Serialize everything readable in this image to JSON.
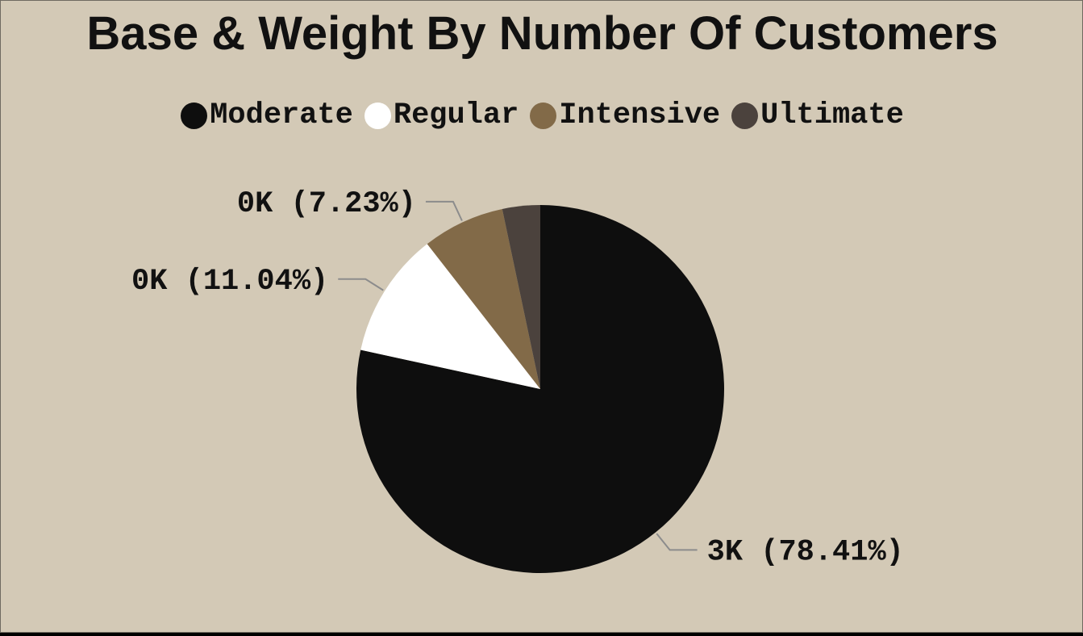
{
  "chart_data": {
    "type": "pie",
    "title": "Base & Weight By Number Of Customers",
    "legend_position": "top-center",
    "slices": [
      {
        "name": "Moderate",
        "percent": 78.41,
        "label": "3K (78.41%)",
        "color": "#0e0e0e"
      },
      {
        "name": "Regular",
        "percent": 11.04,
        "label": "0K (11.04%)",
        "color": "#ffffff"
      },
      {
        "name": "Intensive",
        "percent": 7.23,
        "label": "0K (7.23%)",
        "color": "#826a48"
      },
      {
        "name": "Ultimate",
        "percent": 3.32,
        "label": "",
        "color": "#4b423d"
      }
    ]
  },
  "colors": {
    "background": "#d3c9b6",
    "leader_line": "#8c8c8c",
    "text": "#111111"
  }
}
